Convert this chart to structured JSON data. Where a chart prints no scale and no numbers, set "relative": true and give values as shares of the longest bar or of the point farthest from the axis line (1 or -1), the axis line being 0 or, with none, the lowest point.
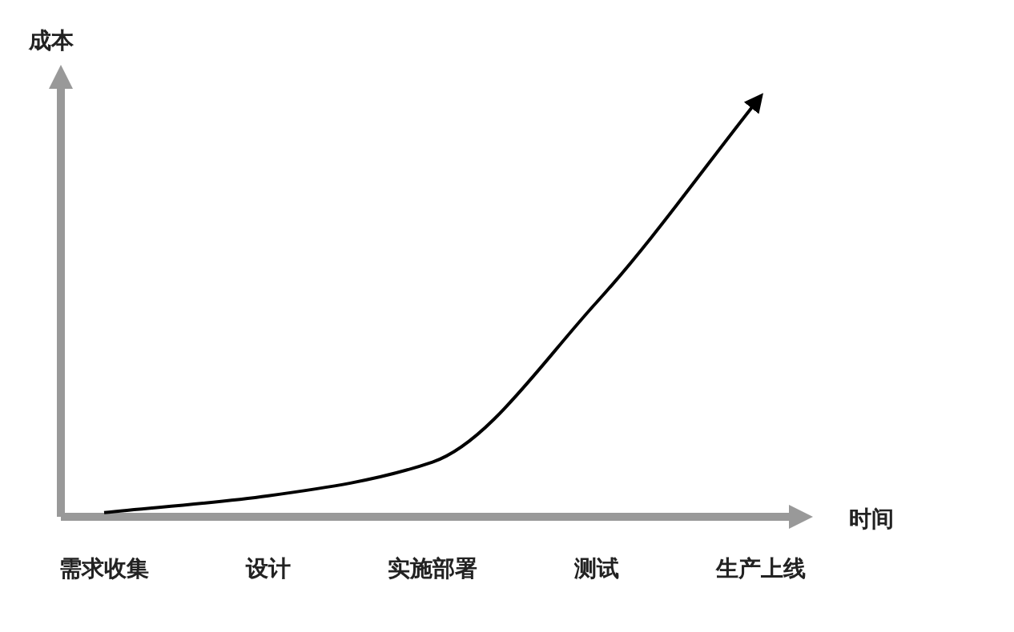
{
  "chart_data": {
    "type": "line",
    "relative": true,
    "xlabel": "时间",
    "ylabel": "成本",
    "categories": [
      "需求收集",
      "设计",
      "实施部署",
      "测试",
      "生产上线"
    ],
    "series": [
      {
        "color": "#000000",
        "values": [
          0.01,
          0.05,
          0.13,
          0.51,
          1
        ]
      }
    ]
  }
}
